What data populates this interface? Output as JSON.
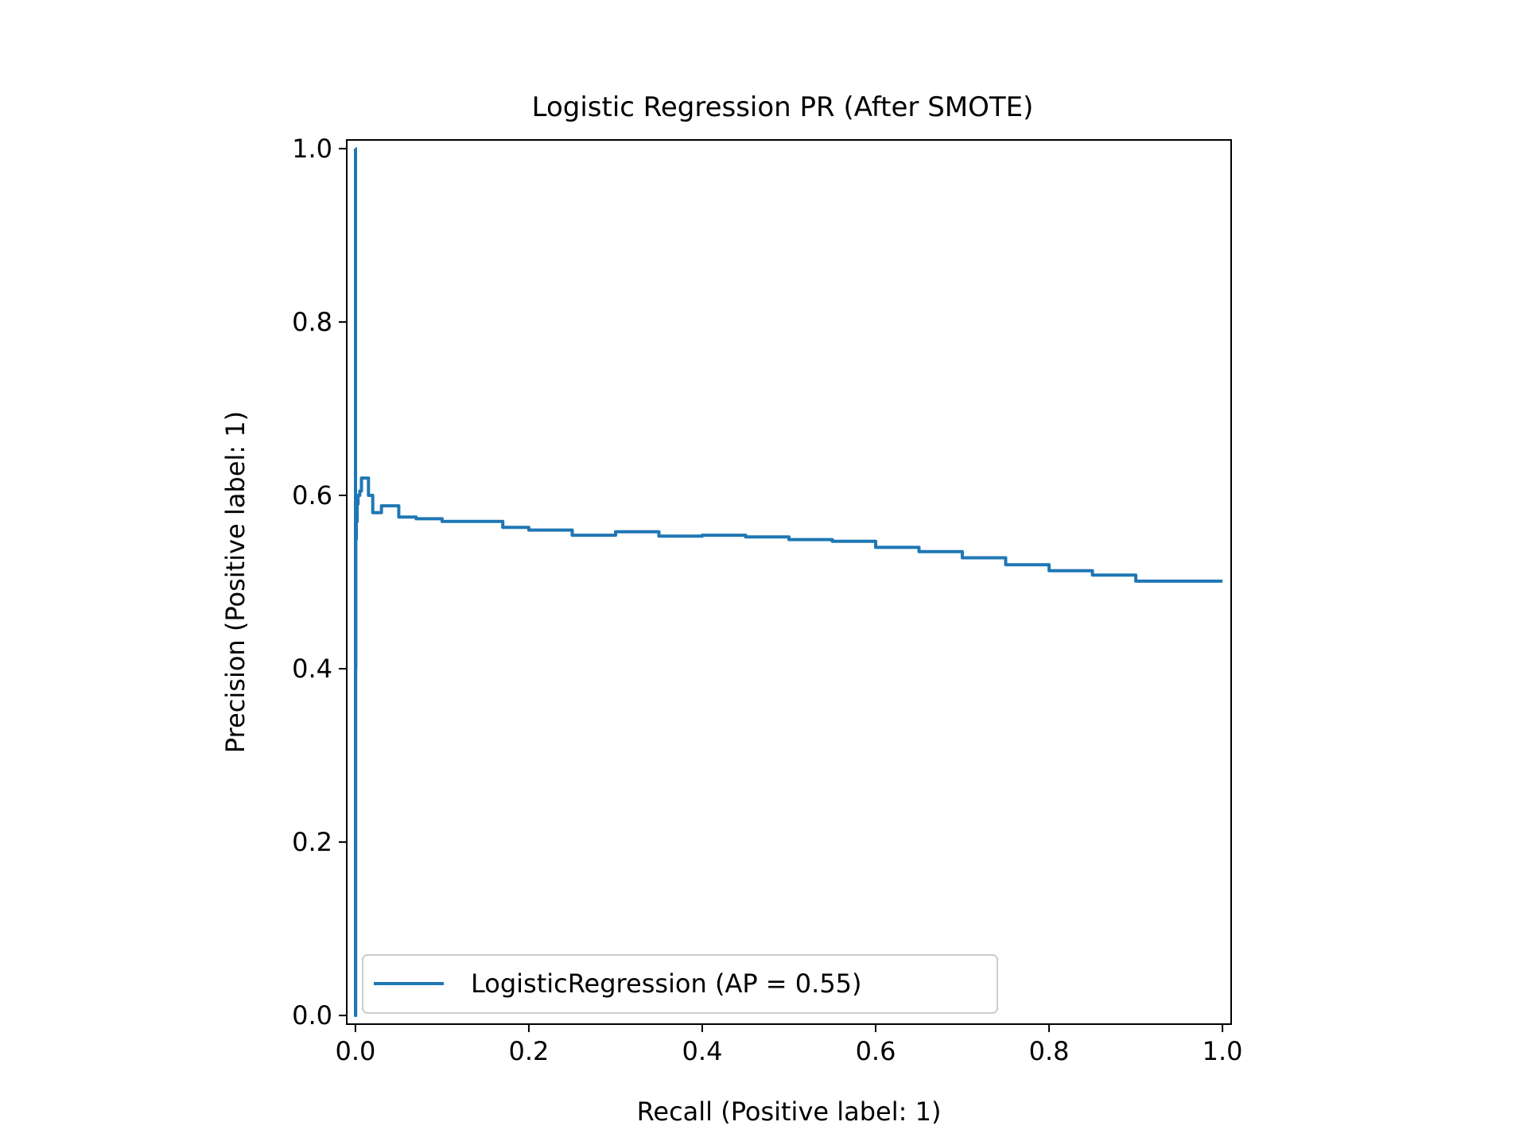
{
  "chart_data": {
    "type": "line",
    "title": "Logistic Regression PR (After SMOTE)",
    "xlabel": "Recall (Positive label: 1)",
    "ylabel": "Precision (Positive label: 1)",
    "xlim": [
      -0.01,
      1.01
    ],
    "ylim": [
      -0.01,
      1.01
    ],
    "xticks": [
      0.0,
      0.2,
      0.4,
      0.6,
      0.8,
      1.0
    ],
    "xtick_labels": [
      "0.0",
      "0.2",
      "0.4",
      "0.6",
      "0.8",
      "1.0"
    ],
    "yticks": [
      0.0,
      0.2,
      0.4,
      0.6,
      0.8,
      1.0
    ],
    "ytick_labels": [
      "0.0",
      "0.2",
      "0.4",
      "0.6",
      "0.8",
      "1.0"
    ],
    "grid": false,
    "legend_position": "lower-right",
    "series": [
      {
        "name": "LogisticRegression (AP = 0.55)",
        "color": "#1f77b4",
        "x": [
          1.0,
          0.9,
          0.85,
          0.8,
          0.75,
          0.7,
          0.65,
          0.6,
          0.55,
          0.5,
          0.45,
          0.4,
          0.35,
          0.3,
          0.25,
          0.2,
          0.17,
          0.1,
          0.07,
          0.05,
          0.03,
          0.02,
          0.015,
          0.01,
          0.007,
          0.005,
          0.003,
          0.002,
          0.001,
          0.0005,
          0.0003,
          0.0001,
          0.0
        ],
        "y": [
          0.501,
          0.508,
          0.513,
          0.52,
          0.528,
          0.535,
          0.54,
          0.547,
          0.549,
          0.552,
          0.554,
          0.553,
          0.558,
          0.554,
          0.56,
          0.563,
          0.57,
          0.573,
          0.575,
          0.588,
          0.58,
          0.6,
          0.62,
          0.62,
          0.605,
          0.6,
          0.59,
          0.57,
          0.55,
          0.4,
          0.0,
          1.0,
          1.0
        ]
      }
    ]
  }
}
